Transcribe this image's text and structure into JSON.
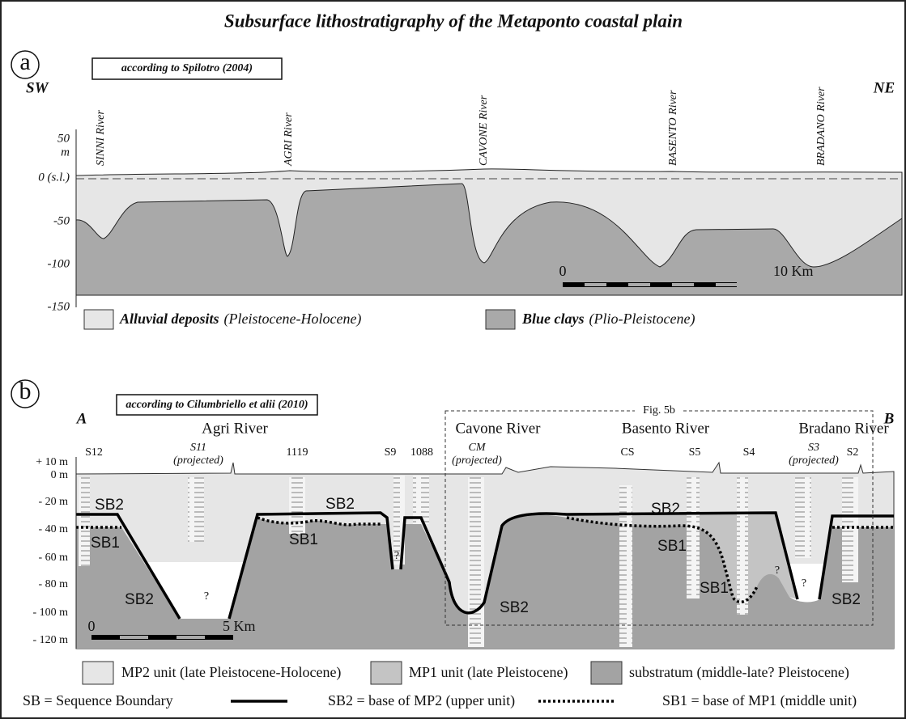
{
  "title": "Subsurface lithostratigraphy of the Metaponto coastal plain",
  "panel_a": {
    "label": "a",
    "source": "according to Spilotro (2004)",
    "left_end": "SW",
    "right_end": "NE",
    "rivers": [
      "SINNI River",
      "AGRI River",
      "CAVONE River",
      "BASENTO River",
      "BRADANO River"
    ],
    "axis_labels": [
      "50",
      "m",
      "0 (s.l.)",
      "-50",
      "-100",
      "-150"
    ],
    "scale": [
      "0",
      "10 Km"
    ],
    "legend": [
      {
        "name": "Alluvial deposits",
        "age": "(Pleistocene-Holocene)"
      },
      {
        "name": "Blue clays",
        "age": "(Plio-Pleistocene)"
      }
    ]
  },
  "panel_b": {
    "label": "b",
    "source": "according to Cilumbriello et alii (2010)",
    "left_end": "A",
    "right_end": "B",
    "rivers": [
      "Agri River",
      "Cavone River",
      "Basento River",
      "Bradano River"
    ],
    "inset": "Fig. 5b",
    "wells": [
      {
        "name": "S12"
      },
      {
        "name": "S11",
        "note": "(projected)"
      },
      {
        "name": "1119"
      },
      {
        "name": "S9"
      },
      {
        "name": "1088"
      },
      {
        "name": "CM",
        "note": "(projected)"
      },
      {
        "name": "CS"
      },
      {
        "name": "S5"
      },
      {
        "name": "S4"
      },
      {
        "name": "S3",
        "note": "(projected)"
      },
      {
        "name": "S2"
      }
    ],
    "axis_labels": [
      "+ 10 m",
      "0 m",
      "- 20 m",
      "- 40 m",
      "- 60 m",
      "- 80 m",
      "- 100 m",
      "- 120 m"
    ],
    "boundary_labels": [
      "SB2",
      "SB1",
      "SB2",
      "?",
      "SB2",
      "SB1",
      "?",
      "SB2",
      "SB2",
      "SB1",
      "SB1",
      "?",
      "?",
      "SB2"
    ],
    "scale": [
      "0",
      "5 Km"
    ],
    "legend": [
      "MP2 unit (late Pleistocene-Holocene)",
      "MP1 unit (late Pleistocene)",
      "substratum (middle-late? Pleistocene)"
    ],
    "key": [
      "SB = Sequence Boundary",
      "SB2 = base of MP2 (upper unit)",
      "SB1 = base of MP1 (middle unit)"
    ]
  }
}
